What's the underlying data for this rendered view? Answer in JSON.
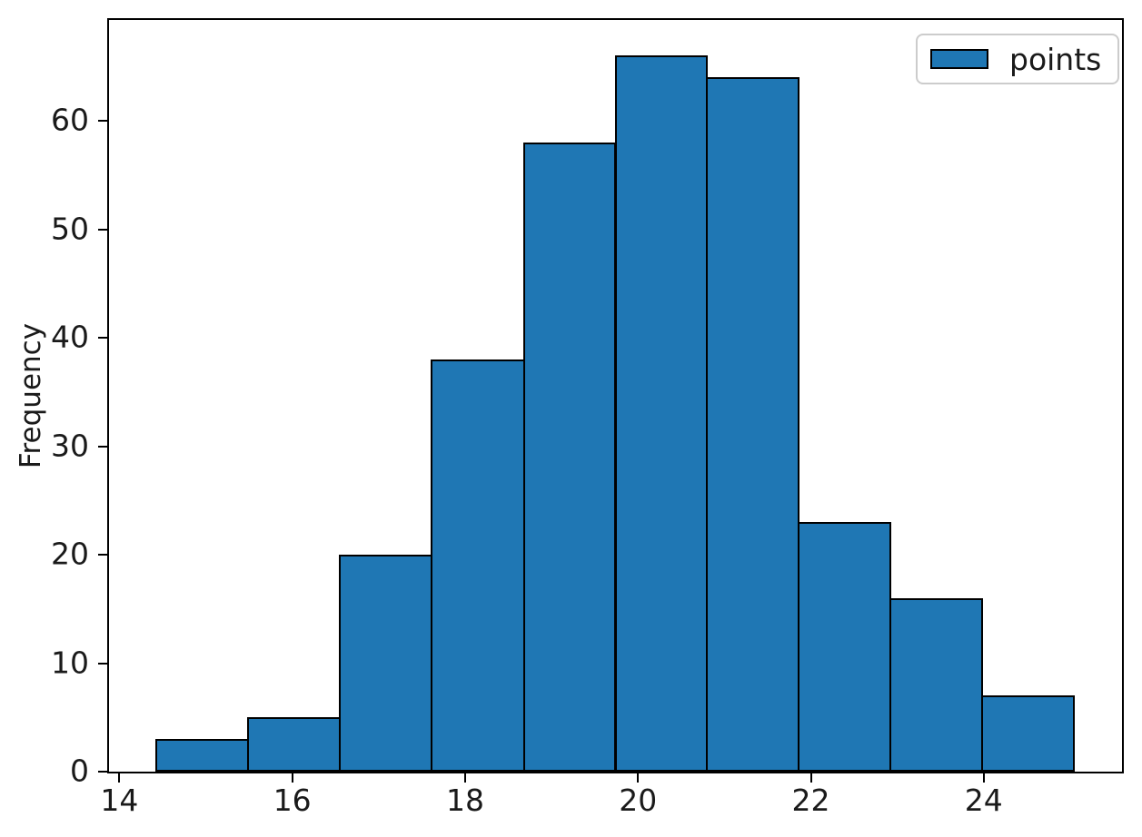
{
  "figure": {
    "background": "#ffffff"
  },
  "legend": {
    "label": "points",
    "swatch_color": "#1f77b4",
    "swatch_edge_color": "#000000",
    "border_color": "#cccccc",
    "position": "upper right"
  },
  "chart_data": {
    "type": "histogram",
    "title": "",
    "xlabel": "",
    "ylabel": "Frequency",
    "series_label": "points",
    "bin_edges": [
      14.43,
      15.49,
      16.55,
      17.61,
      18.68,
      19.74,
      20.8,
      21.86,
      22.92,
      23.98,
      25.04
    ],
    "counts": [
      3,
      5,
      20,
      38,
      58,
      66,
      64,
      23,
      16,
      7
    ],
    "x_ticks": [
      14,
      16,
      18,
      20,
      22,
      24
    ],
    "y_ticks": [
      0,
      10,
      20,
      30,
      40,
      50,
      60
    ],
    "xlim": [
      13.88,
      25.6
    ],
    "ylim": [
      0,
      69.3
    ],
    "grid": false,
    "legend_position": "upper right",
    "bar_color": "#1f77b4",
    "bar_edge_color": "#000000"
  }
}
